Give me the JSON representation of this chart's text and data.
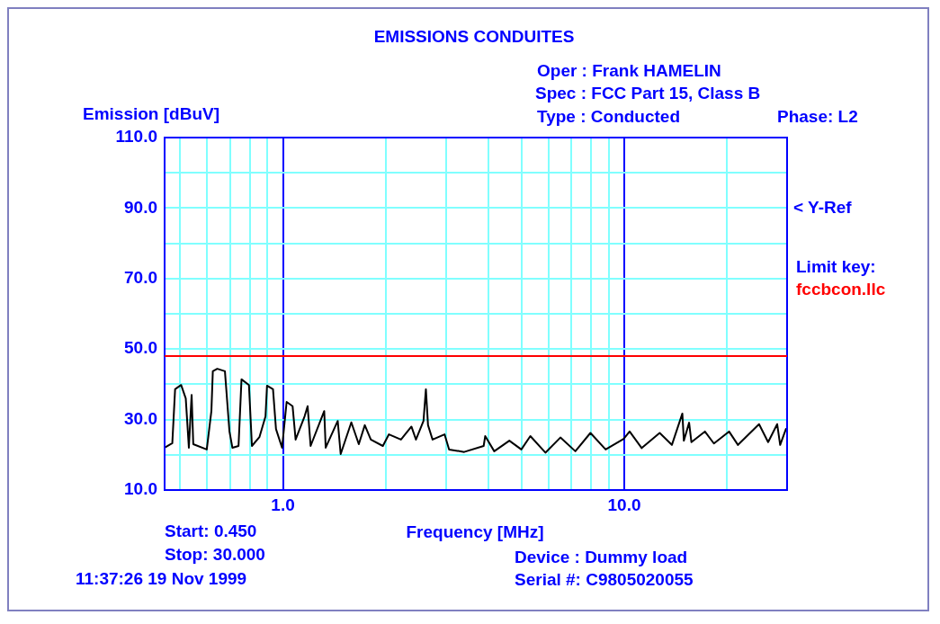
{
  "chart_data": {
    "type": "line",
    "title": "EMISSIONS CONDUITES",
    "xlabel": "Frequency [MHz]",
    "ylabel": "Emission [dBuV]",
    "log": "x",
    "grid": true,
    "legend": false,
    "marker": "none",
    "line_style": "solid",
    "xlim": [
      0.45,
      30
    ],
    "xticks": [
      {
        "value": 0.5,
        "label": null
      },
      {
        "value": 0.6,
        "label": null
      },
      {
        "value": 0.7,
        "label": null
      },
      {
        "value": 0.8,
        "label": null
      },
      {
        "value": 0.9,
        "label": null
      },
      {
        "value": 1,
        "label": "1.0"
      },
      {
        "value": 2,
        "label": null
      },
      {
        "value": 3,
        "label": null
      },
      {
        "value": 4,
        "label": null
      },
      {
        "value": 5,
        "label": null
      },
      {
        "value": 6,
        "label": null
      },
      {
        "value": 7,
        "label": null
      },
      {
        "value": 8,
        "label": null
      },
      {
        "value": 9,
        "label": null
      },
      {
        "value": 10,
        "label": "10.0"
      },
      {
        "value": 20,
        "label": null
      }
    ],
    "ylim": [
      10,
      110
    ],
    "yticks": [
      {
        "value": 10,
        "label": "10.0"
      },
      {
        "value": 20,
        "label": null
      },
      {
        "value": 30,
        "label": "30.0"
      },
      {
        "value": 40,
        "label": null
      },
      {
        "value": 50,
        "label": "50.0"
      },
      {
        "value": 60,
        "label": null
      },
      {
        "value": 70,
        "label": "70.0"
      },
      {
        "value": 80,
        "label": null
      },
      {
        "value": 90,
        "label": "90.0"
      },
      {
        "value": 100,
        "label": null
      },
      {
        "value": 110,
        "label": "110.0"
      }
    ],
    "ref_lines": [
      {
        "axis": "y",
        "value": 48,
        "label": "fccbcon.llc",
        "color": "#ff0000"
      }
    ],
    "annotations": [
      "Oper : Frank HAMELIN",
      "Spec : FCC Part 15, Class B",
      "Type : Conducted",
      "Phase: L2",
      "Start: 0.450",
      "Stop: 30.000",
      "11:37:26 19 Nov 1999",
      "Device : Dummy load",
      "Serial #: C9805020055",
      "Limit key:",
      "< Y-Ref"
    ],
    "series": [
      {
        "color": "#000000",
        "x": [
          0.45,
          0.474,
          0.483,
          0.503,
          0.519,
          0.53,
          0.54,
          0.546,
          0.598,
          0.617,
          0.623,
          0.642,
          0.676,
          0.697,
          0.711,
          0.741,
          0.756,
          0.795,
          0.811,
          0.853,
          0.889,
          0.898,
          0.935,
          0.954,
          0.994,
          1.025,
          1.067,
          1.089,
          1.157,
          1.181,
          1.205,
          1.321,
          1.334,
          1.447,
          1.476,
          1.586,
          1.668,
          1.737,
          1.809,
          1.962,
          2.044,
          2.217,
          2.379,
          2.453,
          2.581,
          2.623,
          2.661,
          2.744,
          2.975,
          3.068,
          3.396,
          3.873,
          3.914,
          4.16,
          4.606,
          4.994,
          5.307,
          5.875,
          6.5,
          7.19,
          7.96,
          8.82,
          9.96,
          10.37,
          11.25,
          12.7,
          13.79,
          14.8,
          14.95,
          15.49,
          15.73,
          17.23,
          18.31,
          20.28,
          21.54,
          24.83,
          26.4,
          28.06,
          28.63,
          29.82
        ],
        "values": [
          22,
          23.3,
          38.6,
          39.8,
          36,
          22,
          37,
          23,
          21.5,
          32.4,
          43.7,
          44.4,
          43.7,
          26.6,
          22,
          22.5,
          41.4,
          39.8,
          22.5,
          25,
          30.9,
          39.6,
          38.6,
          27.3,
          22,
          35,
          33.8,
          24.3,
          30.9,
          33.8,
          22.5,
          32.4,
          22,
          29.6,
          20.2,
          29.2,
          23,
          28.4,
          24.3,
          22.5,
          25.8,
          24.3,
          28,
          24.3,
          29.6,
          38.6,
          28.4,
          24.3,
          25.8,
          21.5,
          20.8,
          22.5,
          25.3,
          21,
          24,
          21.5,
          25.3,
          20.6,
          24.9,
          21,
          26.2,
          21.5,
          24.5,
          26.6,
          21.9,
          26.2,
          22.8,
          31.7,
          24,
          29.1,
          23.6,
          26.6,
          23.2,
          26.6,
          22.8,
          28.7,
          23.6,
          28.7,
          22.8,
          27.5
        ]
      }
    ]
  }
}
